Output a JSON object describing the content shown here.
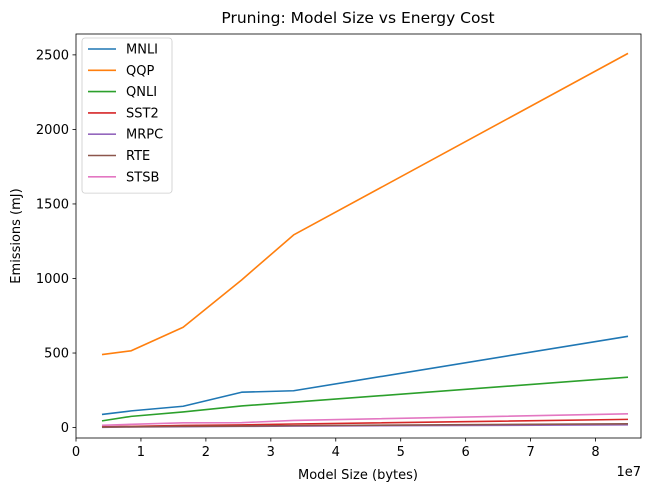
{
  "chart_data": {
    "type": "line",
    "title": "Pruning: Model Size vs Energy Cost",
    "xlabel": "Model Size (bytes)",
    "ylabel": "Emissions (mJ)",
    "x_offset_label": "1e7",
    "xlim": [
      0,
      87000000
    ],
    "ylim": [
      -70,
      2640
    ],
    "xticks": [
      0,
      10000000,
      20000000,
      30000000,
      40000000,
      50000000,
      60000000,
      70000000,
      80000000
    ],
    "xtick_labels": [
      "0",
      "1",
      "2",
      "3",
      "4",
      "5",
      "6",
      "7",
      "8"
    ],
    "yticks": [
      0,
      500,
      1000,
      1500,
      2000,
      2500
    ],
    "ytick_labels": [
      "0",
      "500",
      "1000",
      "1500",
      "2000",
      "2500"
    ],
    "grid": false,
    "legend_position": "top-left",
    "x": [
      4000000,
      8500000,
      16500000,
      25500000,
      33500000,
      85000000
    ],
    "series": [
      {
        "name": "MNLI",
        "color": "#1f77b4",
        "values": [
          88,
          112,
          143,
          237,
          247,
          612
        ]
      },
      {
        "name": "QQP",
        "color": "#ff7f0e",
        "values": [
          490,
          515,
          673,
          990,
          1292,
          2510
        ]
      },
      {
        "name": "QNLI",
        "color": "#2ca02c",
        "values": [
          45,
          75,
          105,
          145,
          170,
          338
        ]
      },
      {
        "name": "SST2",
        "color": "#d62728",
        "values": [
          5,
          8,
          14,
          18,
          24,
          55
        ]
      },
      {
        "name": "MRPC",
        "color": "#9467bd",
        "values": [
          2,
          4,
          6,
          8,
          10,
          18
        ]
      },
      {
        "name": "RTE",
        "color": "#8c564b",
        "values": [
          3,
          5,
          8,
          10,
          13,
          25
        ]
      },
      {
        "name": "STSB",
        "color": "#e377c2",
        "values": [
          15,
          22,
          32,
          33,
          48,
          92
        ]
      }
    ]
  }
}
